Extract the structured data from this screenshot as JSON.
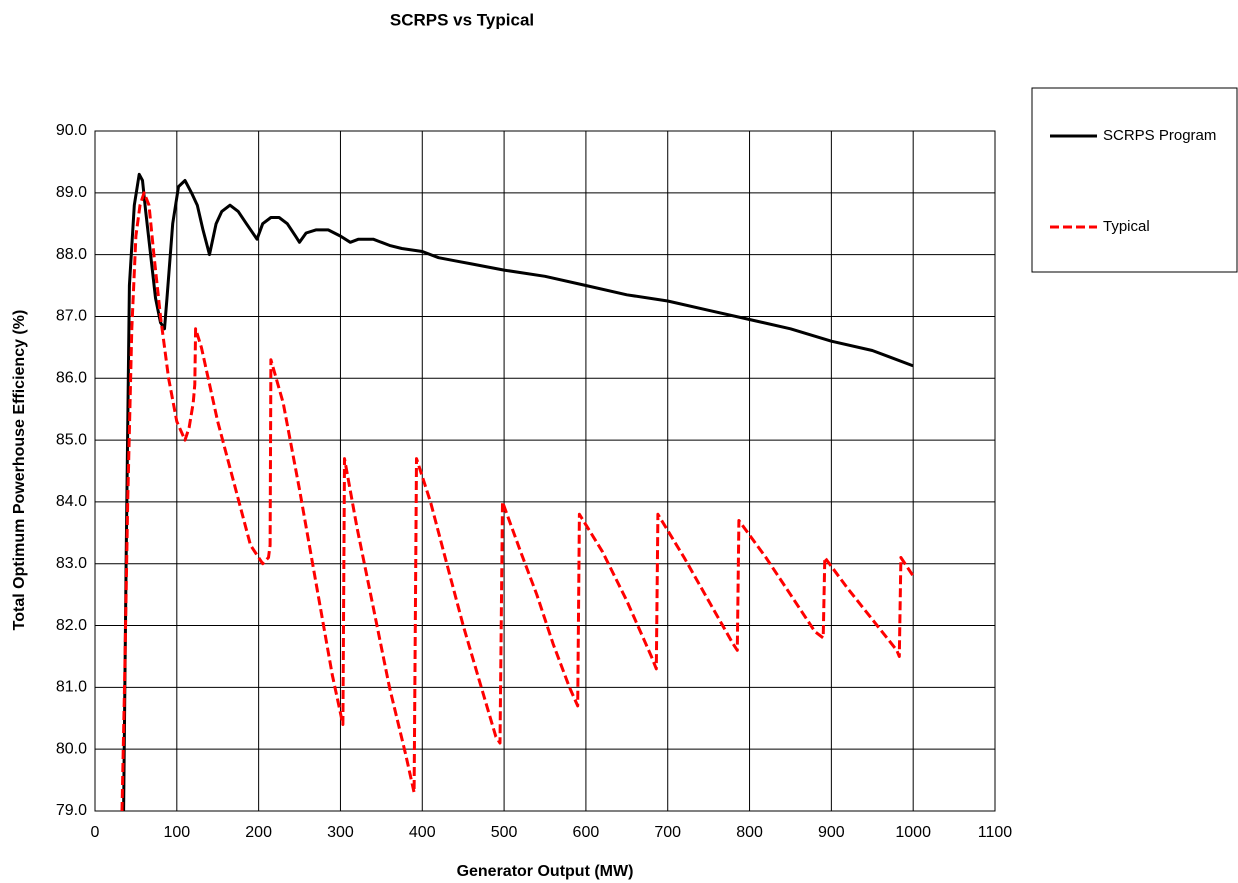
{
  "chart_data": {
    "type": "line",
    "title": "SCRPS vs Typical",
    "x_label": "Generator Output (MW)",
    "y_label": "Total Optimum Powerhouse Efficiency (%)",
    "xlim": [
      0,
      1100
    ],
    "xticks": [
      0,
      100,
      200,
      300,
      400,
      500,
      600,
      700,
      800,
      900,
      1000,
      1100
    ],
    "ylim": [
      79,
      90
    ],
    "yticks": [
      {
        "value": 79,
        "label": "79.0"
      },
      {
        "value": 80,
        "label": "80.0"
      },
      {
        "value": 81,
        "label": "81.0"
      },
      {
        "value": 82,
        "label": "82.0"
      },
      {
        "value": 83,
        "label": "83.0"
      },
      {
        "value": 84,
        "label": "84.0"
      },
      {
        "value": 85,
        "label": "85.0"
      },
      {
        "value": 86,
        "label": "86.0"
      },
      {
        "value": 87,
        "label": "87.0"
      },
      {
        "value": 88,
        "label": "88.0"
      },
      {
        "value": 89,
        "label": "89.0"
      },
      {
        "value": 90,
        "label": "90.0"
      }
    ],
    "grid": true,
    "legend": "right",
    "series": [
      {
        "name": "SCRPS Program",
        "color": "#000000",
        "linestyle": "solid",
        "x": [
          35,
          38,
          42,
          48,
          54,
          58,
          62,
          68,
          74,
          80,
          85,
          88,
          95,
          102,
          110,
          118,
          125,
          132,
          140,
          148,
          155,
          165,
          175,
          185,
          198,
          205,
          215,
          225,
          235,
          245,
          250,
          258,
          270,
          285,
          300,
          312,
          322,
          340,
          360,
          375,
          400,
          420,
          440,
          460,
          480,
          500,
          550,
          600,
          650,
          700,
          750,
          800,
          850,
          900,
          950,
          1000
        ],
        "values": [
          79.0,
          83.0,
          87.5,
          88.8,
          89.3,
          89.2,
          88.7,
          88.0,
          87.3,
          86.9,
          86.8,
          87.3,
          88.5,
          89.1,
          89.2,
          89.0,
          88.8,
          88.4,
          88.0,
          88.5,
          88.7,
          88.8,
          88.7,
          88.5,
          88.25,
          88.5,
          88.6,
          88.6,
          88.5,
          88.3,
          88.2,
          88.35,
          88.4,
          88.4,
          88.3,
          88.2,
          88.25,
          88.25,
          88.15,
          88.1,
          88.05,
          87.95,
          87.9,
          87.85,
          87.8,
          87.75,
          87.65,
          87.5,
          87.35,
          87.25,
          87.1,
          86.95,
          86.8,
          86.6,
          86.45,
          86.2
        ]
      },
      {
        "name": "Typical",
        "color": "#ff0000",
        "linestyle": "dashed",
        "x": [
          33,
          36,
          40,
          45,
          50,
          55,
          60,
          66,
          72,
          80,
          90,
          100,
          110,
          115,
          120,
          122,
          123,
          130,
          150,
          170,
          190,
          205,
          212,
          214,
          215,
          230,
          250,
          270,
          290,
          303,
          305,
          320,
          340,
          360,
          380,
          390,
          393,
          410,
          430,
          450,
          470,
          490,
          495,
          498,
          520,
          540,
          560,
          580,
          590,
          592,
          620,
          650,
          680,
          686,
          688,
          720,
          750,
          780,
          785,
          787,
          820,
          850,
          880,
          890,
          892,
          920,
          950,
          980,
          983,
          985,
          1000
        ],
        "values": [
          79.0,
          81.0,
          84.0,
          86.8,
          88.3,
          88.8,
          89.0,
          88.8,
          88.0,
          87.0,
          86.0,
          85.3,
          85.0,
          85.2,
          85.6,
          85.9,
          86.8,
          86.5,
          85.3,
          84.3,
          83.3,
          83.0,
          83.1,
          83.3,
          86.3,
          85.6,
          84.2,
          82.7,
          81.2,
          80.4,
          84.7,
          83.6,
          82.3,
          81.0,
          79.9,
          79.3,
          84.7,
          84.0,
          83.0,
          82.0,
          81.1,
          80.2,
          80.1,
          84.0,
          83.2,
          82.5,
          81.7,
          81.0,
          80.7,
          83.8,
          83.2,
          82.4,
          81.5,
          81.3,
          83.8,
          83.1,
          82.4,
          81.7,
          81.6,
          83.7,
          83.1,
          82.5,
          81.9,
          81.8,
          83.1,
          82.6,
          82.1,
          81.6,
          81.5,
          83.1,
          82.8
        ]
      }
    ]
  }
}
